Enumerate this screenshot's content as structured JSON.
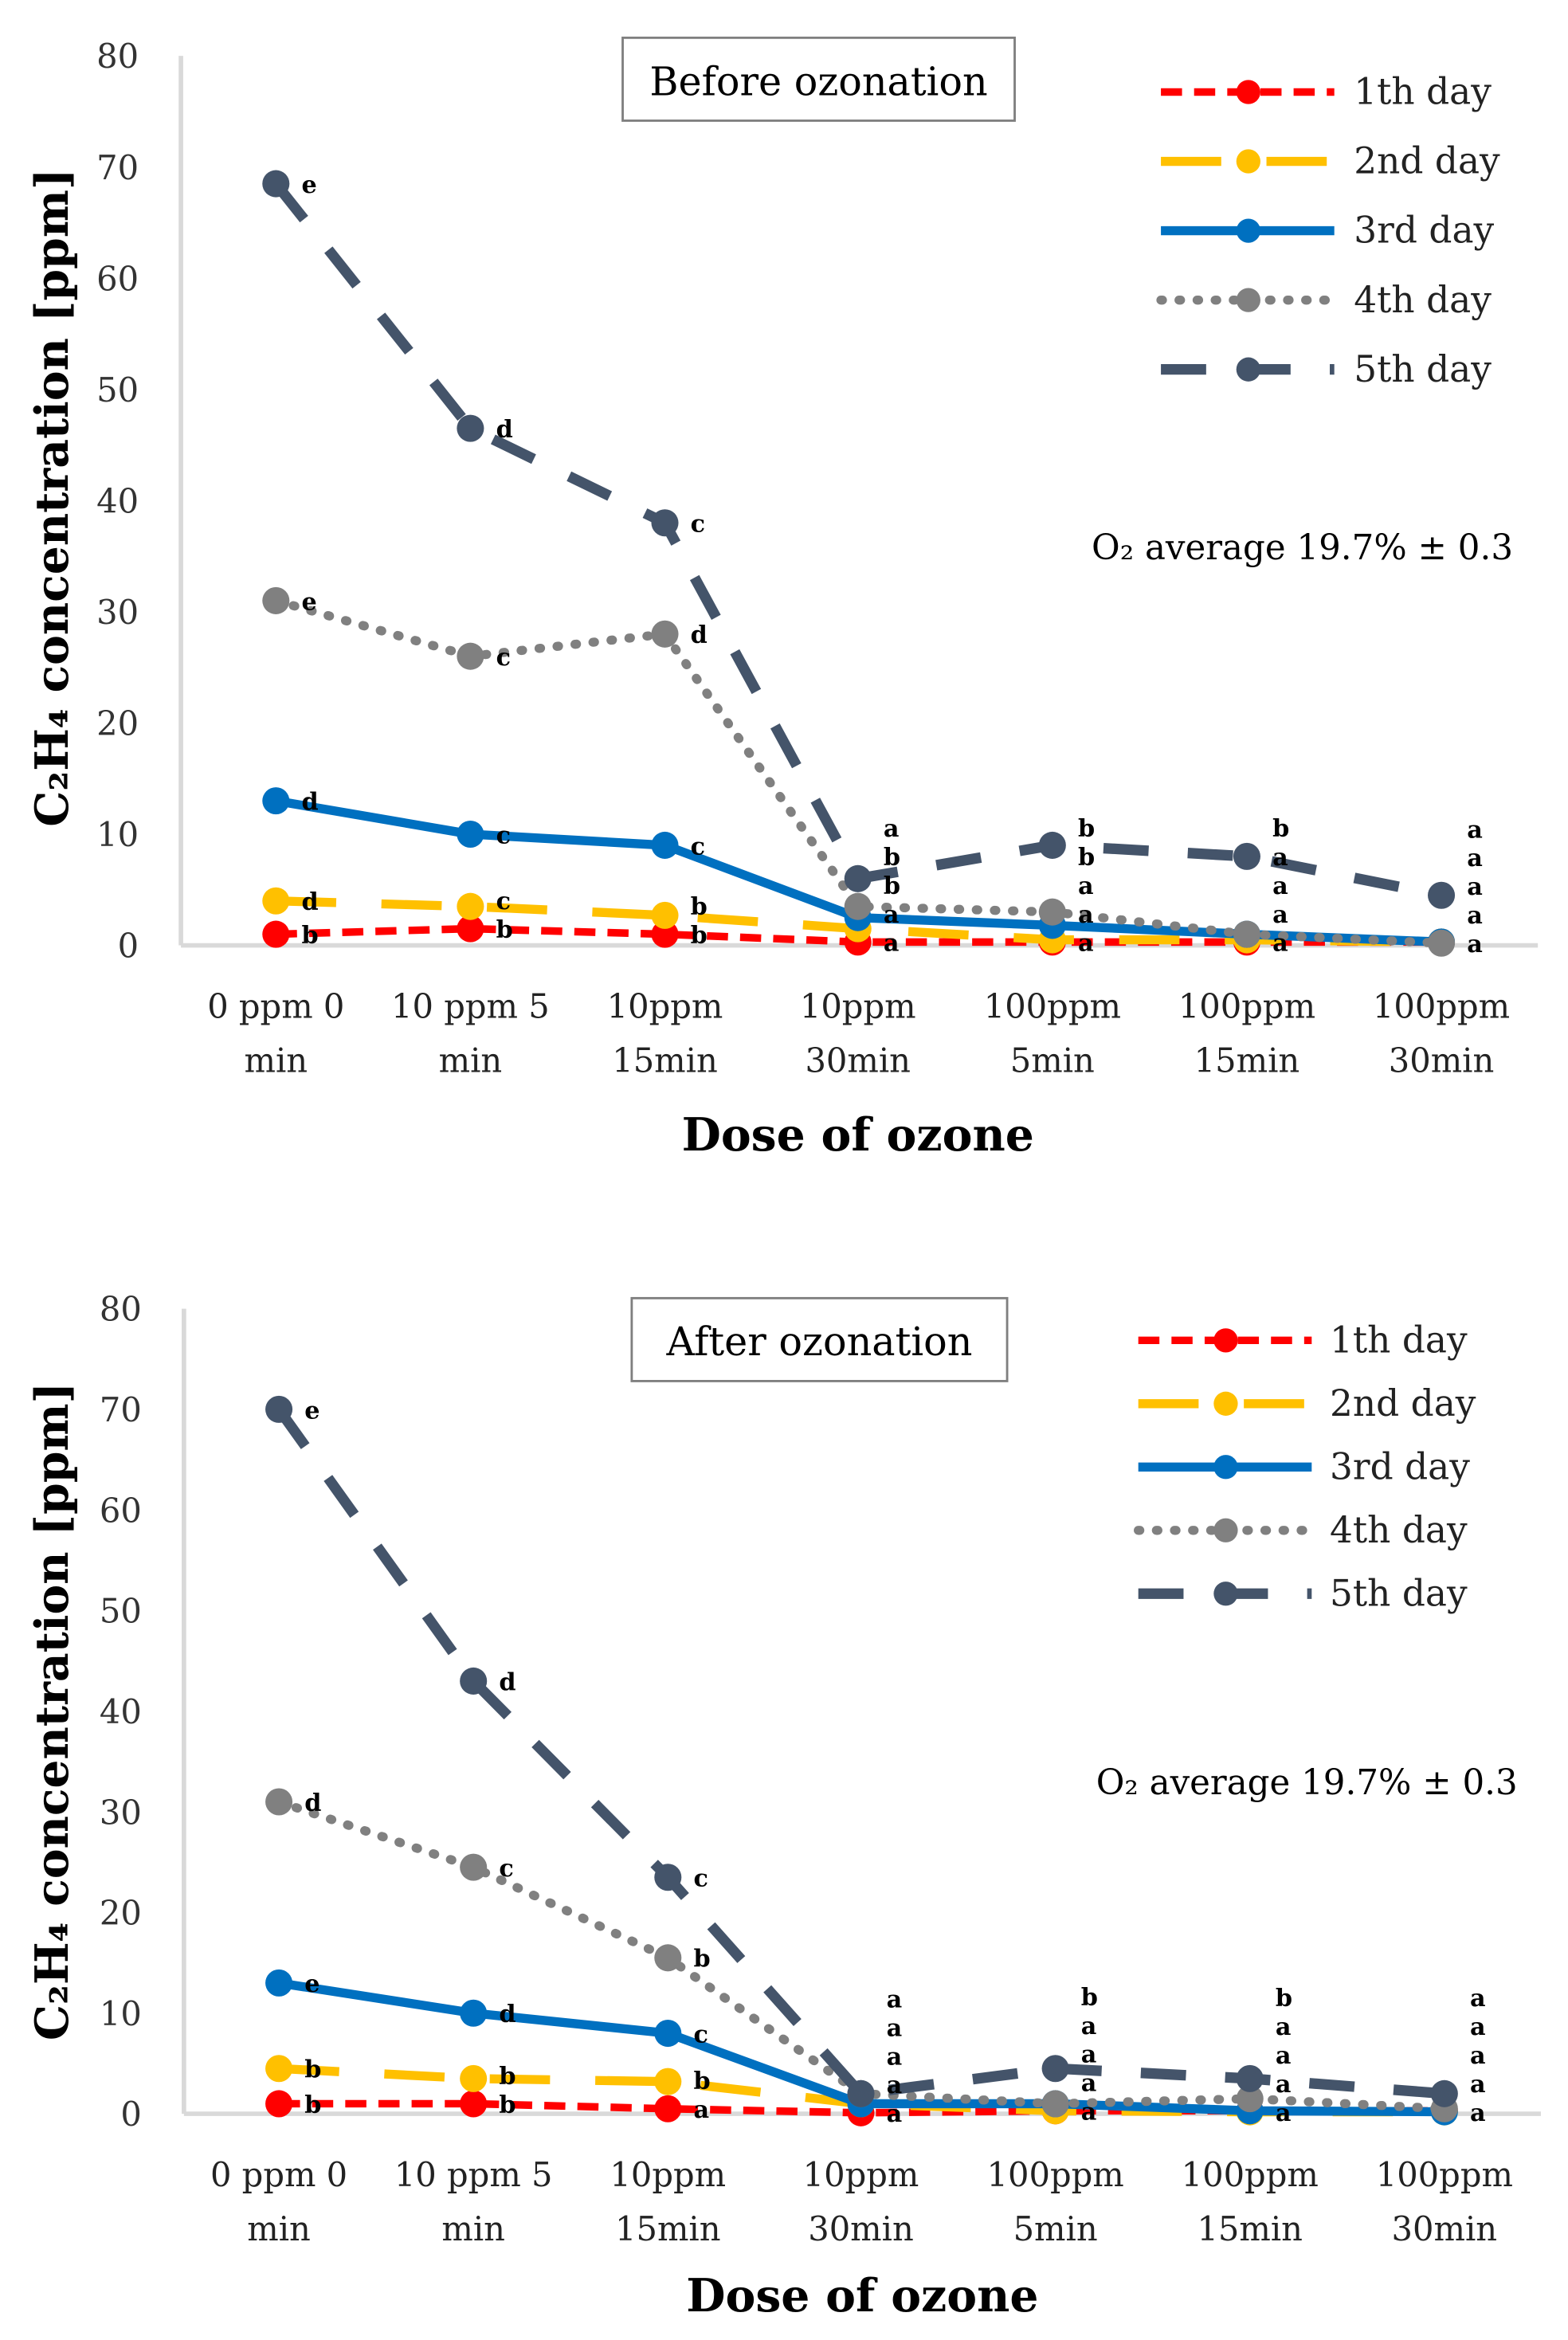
{
  "chart_data": [
    {
      "type": "line",
      "title": "Before ozonation",
      "xlabel": "Dose of ozone",
      "ylabel": "C₂H₄ concentration [ppm]",
      "note": "O₂ average 19.7% ± 0.3",
      "ylim": [
        0,
        80
      ],
      "yticks": [
        "0",
        "10",
        "20",
        "30",
        "40",
        "50",
        "60",
        "70",
        "80"
      ],
      "legend_position": "top-right",
      "categories": [
        [
          "0 ppm 0",
          "min"
        ],
        [
          "10 ppm 5",
          "min"
        ],
        [
          "10ppm",
          "15min"
        ],
        [
          "10ppm",
          "30min"
        ],
        [
          "100ppm",
          "5min"
        ],
        [
          "100ppm",
          "15min"
        ],
        [
          "100ppm",
          "30min"
        ]
      ],
      "series": [
        {
          "name": "1th day",
          "color": "#FF0000",
          "values": [
            1,
            1.5,
            1,
            0.3,
            0.3,
            0.3,
            0.3
          ],
          "letters": [
            "b",
            "b",
            "b",
            "a",
            "a",
            "a",
            "a"
          ]
        },
        {
          "name": "2nd day",
          "color": "#FFC000",
          "values": [
            4,
            3.5,
            2.7,
            1.5,
            0.5,
            0.5,
            0.3
          ],
          "letters": [
            "d",
            "c",
            "b",
            "a",
            "a",
            "a",
            "a"
          ]
        },
        {
          "name": "3rd day",
          "color": "#0070C0",
          "values": [
            13,
            10,
            9,
            2.5,
            1.8,
            1,
            0.3
          ],
          "letters": [
            "d",
            "c",
            "c",
            "b",
            "a",
            "a",
            "a"
          ]
        },
        {
          "name": "4th day",
          "color": "#808080",
          "values": [
            31,
            26,
            28,
            3.5,
            3,
            1,
            0.2
          ],
          "letters": [
            "e",
            "c",
            "d",
            "b",
            "b",
            "a",
            "a"
          ]
        },
        {
          "name": "5th day",
          "color": "#44546A",
          "values": [
            68.5,
            46.5,
            38,
            6,
            9,
            8,
            4.5
          ],
          "letters": [
            "e",
            "d",
            "c",
            "a",
            "b",
            "b",
            "a"
          ]
        }
      ]
    },
    {
      "type": "line",
      "title": "After ozonation",
      "xlabel": "Dose of ozone",
      "ylabel": "C₂H₄ concentration [ppm]",
      "note": "O₂ average 19.7% ± 0.3",
      "ylim": [
        0,
        80
      ],
      "yticks": [
        "0",
        "10",
        "20",
        "30",
        "40",
        "50",
        "60",
        "70",
        "80"
      ],
      "legend_position": "top-right",
      "categories": [
        [
          "0 ppm 0",
          "min"
        ],
        [
          "10 ppm 5",
          "min"
        ],
        [
          "10ppm",
          "15min"
        ],
        [
          "10ppm",
          "30min"
        ],
        [
          "100ppm",
          "5min"
        ],
        [
          "100ppm",
          "15min"
        ],
        [
          "100ppm",
          "30min"
        ]
      ],
      "series": [
        {
          "name": "1th day",
          "color": "#FF0000",
          "values": [
            1,
            1,
            0.5,
            0.1,
            0.3,
            0.3,
            0.3
          ],
          "letters": [
            "b",
            "b",
            "a",
            "a",
            "a",
            "a",
            "a"
          ]
        },
        {
          "name": "2nd day",
          "color": "#FFC000",
          "values": [
            4.5,
            3.5,
            3.2,
            1,
            0.3,
            0.2,
            0.2
          ],
          "letters": [
            "b",
            "b",
            "b",
            "a",
            "a",
            "a",
            "a"
          ]
        },
        {
          "name": "3rd day",
          "color": "#0070C0",
          "values": [
            13,
            10,
            8,
            1,
            1,
            0.3,
            0.2
          ],
          "letters": [
            "e",
            "d",
            "c",
            "a",
            "a",
            "a",
            "a"
          ]
        },
        {
          "name": "4th day",
          "color": "#808080",
          "values": [
            31,
            24.5,
            15.5,
            2,
            1,
            1.5,
            0.5
          ],
          "letters": [
            "d",
            "c",
            "b",
            "a",
            "a",
            "a",
            "a"
          ]
        },
        {
          "name": "5th day",
          "color": "#44546A",
          "values": [
            70,
            43,
            23.5,
            2,
            4.5,
            3.5,
            2
          ],
          "letters": [
            "e",
            "d",
            "c",
            "a",
            "b",
            "b",
            "a"
          ]
        }
      ]
    }
  ]
}
